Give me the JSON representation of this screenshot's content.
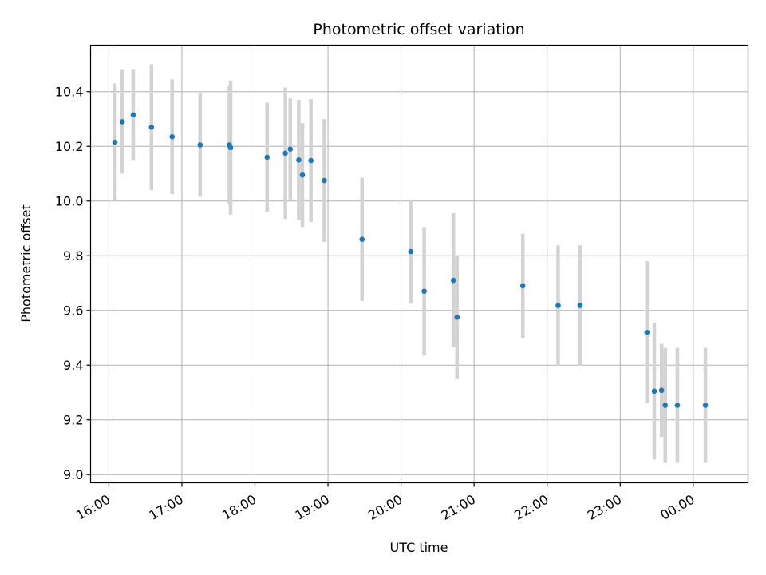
{
  "chart_data": {
    "type": "scatter",
    "title": "Photometric offset variation",
    "xlabel": "UTC time",
    "ylabel": "Photometric offset",
    "grid": true,
    "x_axis": {
      "type": "time",
      "reference_date": "2024-01-01",
      "range": [
        "2024-01-01 15:45",
        "2024-01-02 00:45"
      ],
      "ticks": [
        {
          "time": "2024-01-01 16:00",
          "label": "16:00"
        },
        {
          "time": "2024-01-01 17:00",
          "label": "17:00"
        },
        {
          "time": "2024-01-01 18:00",
          "label": "18:00"
        },
        {
          "time": "2024-01-01 19:00",
          "label": "19:00"
        },
        {
          "time": "2024-01-01 20:00",
          "label": "20:00"
        },
        {
          "time": "2024-01-01 21:00",
          "label": "21:00"
        },
        {
          "time": "2024-01-01 22:00",
          "label": "22:00"
        },
        {
          "time": "2024-01-01 23:00",
          "label": "23:00"
        },
        {
          "time": "2024-01-02 00:00",
          "label": "00:00"
        }
      ]
    },
    "y_axis": {
      "range": [
        8.97,
        10.57
      ],
      "ticks": [
        {
          "value": 9.0,
          "label": "9.0"
        },
        {
          "value": 9.2,
          "label": "9.2"
        },
        {
          "value": 9.4,
          "label": "9.4"
        },
        {
          "value": 9.6,
          "label": "9.6"
        },
        {
          "value": 9.8,
          "label": "9.8"
        },
        {
          "value": 10.0,
          "label": "10.0"
        },
        {
          "value": 10.2,
          "label": "10.2"
        },
        {
          "value": 10.4,
          "label": "10.4"
        }
      ]
    },
    "colors": {
      "point": "#1f77b4",
      "errorbar": "#d3d3d3",
      "grid": "#b0b0b0",
      "axis": "#000000"
    },
    "series": [
      {
        "points": [
          {
            "t": "2024-01-01 16:05",
            "y": 10.215,
            "err": 0.215
          },
          {
            "t": "2024-01-01 16:11",
            "y": 10.29,
            "err": 0.19
          },
          {
            "t": "2024-01-01 16:20",
            "y": 10.315,
            "err": 0.165
          },
          {
            "t": "2024-01-01 16:35",
            "y": 10.27,
            "err": 0.23
          },
          {
            "t": "2024-01-01 16:52",
            "y": 10.235,
            "err": 0.21
          },
          {
            "t": "2024-01-01 17:15",
            "y": 10.205,
            "err": 0.19
          },
          {
            "t": "2024-01-01 17:39",
            "y": 10.205,
            "err": 0.215
          },
          {
            "t": "2024-01-01 17:40",
            "y": 10.195,
            "err": 0.245
          },
          {
            "t": "2024-01-01 18:10",
            "y": 10.16,
            "err": 0.2
          },
          {
            "t": "2024-01-01 18:25",
            "y": 10.175,
            "err": 0.24
          },
          {
            "t": "2024-01-01 18:29",
            "y": 10.19,
            "err": 0.185
          },
          {
            "t": "2024-01-01 18:36",
            "y": 10.15,
            "err": 0.22
          },
          {
            "t": "2024-01-01 18:39",
            "y": 10.095,
            "err": 0.19
          },
          {
            "t": "2024-01-01 18:46",
            "y": 10.148,
            "err": 0.225
          },
          {
            "t": "2024-01-01 18:57",
            "y": 10.075,
            "err": 0.225
          },
          {
            "t": "2024-01-01 19:28",
            "y": 9.86,
            "err": 0.225
          },
          {
            "t": "2024-01-01 20:08",
            "y": 9.815,
            "err": 0.19
          },
          {
            "t": "2024-01-01 20:19",
            "y": 9.67,
            "err": 0.235
          },
          {
            "t": "2024-01-01 20:43",
            "y": 9.71,
            "err": 0.245
          },
          {
            "t": "2024-01-01 20:46",
            "y": 9.575,
            "err": 0.225
          },
          {
            "t": "2024-01-01 21:40",
            "y": 9.69,
            "err": 0.19
          },
          {
            "t": "2024-01-01 22:09",
            "y": 9.618,
            "err": 0.22
          },
          {
            "t": "2024-01-01 22:27",
            "y": 9.618,
            "err": 0.22
          },
          {
            "t": "2024-01-01 23:22",
            "y": 9.52,
            "err": 0.26
          },
          {
            "t": "2024-01-01 23:28",
            "y": 9.305,
            "err": 0.25
          },
          {
            "t": "2024-01-01 23:34",
            "y": 9.308,
            "err": 0.17
          },
          {
            "t": "2024-01-01 23:37",
            "y": 9.253,
            "err": 0.21
          },
          {
            "t": "2024-01-01 23:47",
            "y": 9.253,
            "err": 0.21
          },
          {
            "t": "2024-01-02 00:10",
            "y": 9.253,
            "err": 0.21
          }
        ]
      }
    ]
  }
}
